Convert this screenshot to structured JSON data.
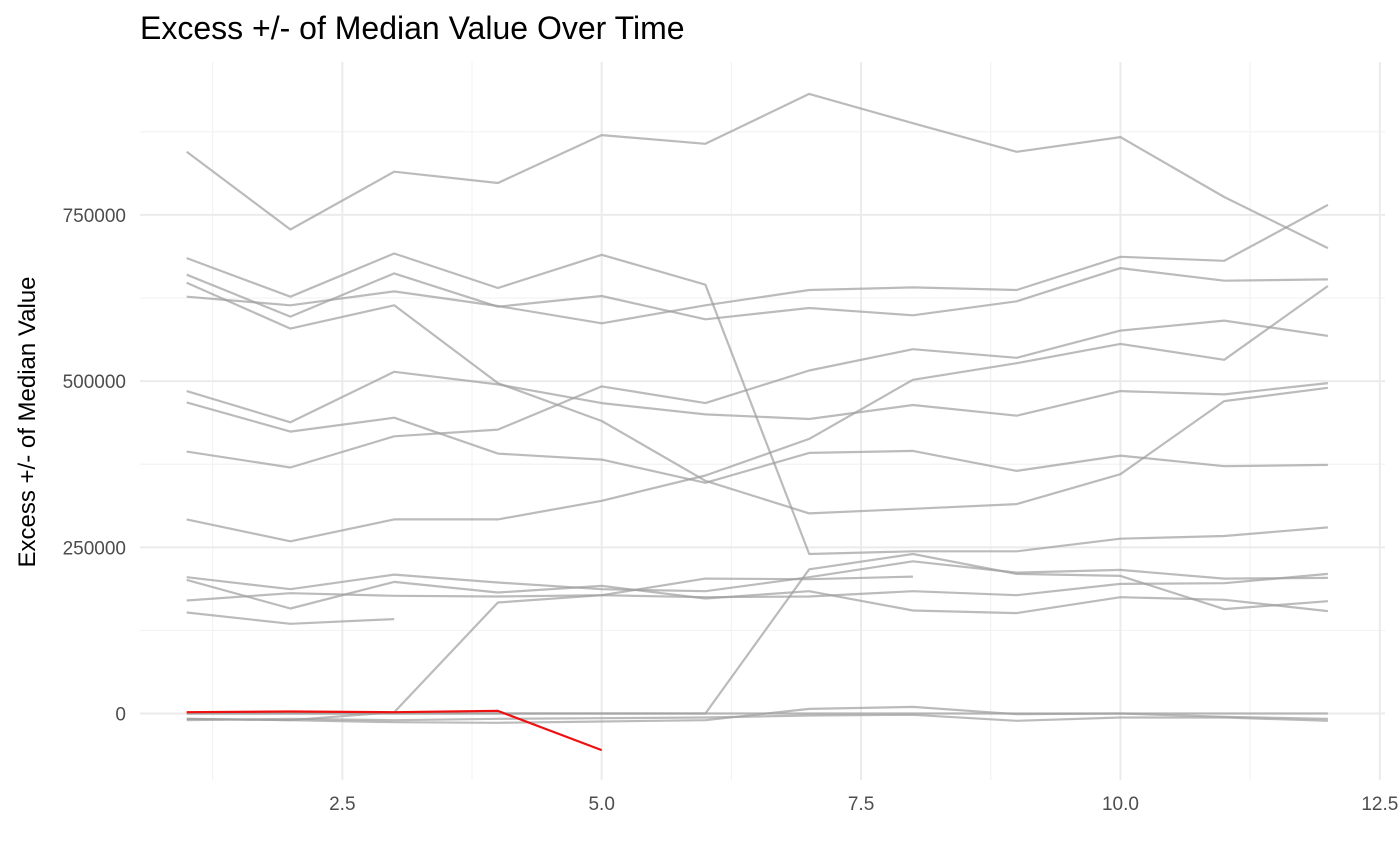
{
  "chart_data": {
    "type": "line",
    "title": "Excess +/- of Median Value Over Time",
    "xlabel": "",
    "ylabel": "Excess +/- of Median Value",
    "xlim": [
      0.55,
      12.55
    ],
    "ylim": [
      -100000,
      980000
    ],
    "x_ticks": [
      2.5,
      5.0,
      7.5,
      10.0,
      12.5
    ],
    "x_tick_labels": [
      "2.5",
      "5.0",
      "7.5",
      "10.0",
      "12.5"
    ],
    "y_ticks": [
      0,
      250000,
      500000,
      750000
    ],
    "y_tick_labels": [
      "0",
      "250000",
      "500000",
      "750000"
    ],
    "grid": true,
    "legend": "none",
    "colors": {
      "background": "#9e9e9e",
      "highlight": "#ee1111"
    },
    "series": [
      {
        "x": [
          1,
          2,
          3,
          4,
          5,
          6,
          7,
          8,
          9,
          10,
          11,
          12
        ],
        "values": [
          845000,
          728000,
          815000,
          798000,
          870000,
          857000,
          932000,
          888000,
          845000,
          867000,
          777000,
          700000
        ]
      },
      {
        "x": [
          1,
          2,
          3,
          4,
          5,
          6,
          7,
          8,
          9,
          10,
          11,
          12
        ],
        "values": [
          685000,
          627000,
          692000,
          640000,
          690000,
          645000,
          240000,
          244000,
          244000,
          263000,
          267000,
          280000
        ]
      },
      {
        "x": [
          1,
          2,
          3,
          4,
          5,
          6,
          7,
          8,
          9,
          10,
          11,
          12
        ],
        "values": [
          660000,
          597000,
          662000,
          612000,
          628000,
          593000,
          610000,
          599000,
          620000,
          670000,
          651000,
          653000
        ]
      },
      {
        "x": [
          1,
          2,
          3,
          4,
          5,
          6,
          7,
          8,
          9,
          10,
          11,
          12
        ],
        "values": [
          648000,
          579000,
          614000,
          497000,
          440000,
          350000,
          301000,
          308000,
          315000,
          360000,
          470000,
          490000
        ]
      },
      {
        "x": [
          1,
          2,
          3,
          4,
          5,
          6,
          7,
          8,
          9,
          10,
          11,
          12
        ],
        "values": [
          627000,
          614000,
          635000,
          613000,
          587000,
          614000,
          637000,
          641000,
          637000,
          687000,
          681000,
          765000
        ]
      },
      {
        "x": [
          1,
          2,
          3,
          4,
          5,
          6,
          7,
          8,
          9,
          10,
          11,
          12
        ],
        "values": [
          485000,
          438000,
          514000,
          495000,
          467000,
          450000,
          443000,
          464000,
          448000,
          485000,
          480000,
          497000
        ]
      },
      {
        "x": [
          1,
          2,
          3,
          4,
          5,
          6,
          7,
          8,
          9,
          10,
          11,
          12
        ],
        "values": [
          468000,
          424000,
          445000,
          391000,
          382000,
          347000,
          392000,
          395000,
          365000,
          388000,
          372000,
          374000
        ]
      },
      {
        "x": [
          1,
          2,
          3,
          4,
          5,
          6,
          7,
          8,
          9,
          10,
          11,
          12
        ],
        "values": [
          394000,
          370000,
          417000,
          427000,
          492000,
          467000,
          516000,
          548000,
          535000,
          576000,
          591000,
          568000
        ]
      },
      {
        "x": [
          1,
          2,
          3,
          4,
          5,
          6,
          7,
          8,
          9,
          10,
          11,
          12
        ],
        "values": [
          292000,
          259000,
          292000,
          292000,
          320000,
          358000,
          413000,
          502000,
          527000,
          556000,
          532000,
          643000
        ]
      },
      {
        "x": [
          1,
          2,
          3,
          4,
          5,
          6,
          7,
          8,
          9,
          10,
          11,
          12
        ],
        "values": [
          205000,
          187000,
          209000,
          197000,
          187000,
          184000,
          205000,
          229000,
          212000,
          216000,
          203000,
          204000
        ]
      },
      {
        "x": [
          1,
          2,
          3,
          4,
          5,
          6,
          7,
          8,
          9,
          10,
          11,
          12
        ],
        "values": [
          201000,
          158000,
          198000,
          182000,
          192000,
          173000,
          184000,
          155000,
          151000,
          175000,
          171000,
          154000
        ]
      },
      {
        "x": [
          1,
          2,
          3,
          4,
          5,
          6,
          7,
          8
        ],
        "values": [
          170000,
          181000,
          177000,
          176000,
          178000,
          203000,
          202000,
          206000
        ]
      },
      {
        "x": [
          1,
          2,
          3
        ],
        "values": [
          152000,
          135000,
          142000
        ]
      },
      {
        "x": [
          1,
          2,
          3,
          4,
          5,
          6,
          7,
          8,
          9,
          10,
          11,
          12
        ],
        "values": [
          -8000,
          -10000,
          2000,
          167000,
          178000,
          175000,
          176000,
          184000,
          178000,
          195000,
          196000,
          210000
        ]
      },
      {
        "x": [
          1,
          2,
          3,
          4,
          5,
          6,
          7,
          8,
          9,
          10,
          11,
          12
        ],
        "values": [
          0,
          0,
          0,
          0,
          0,
          0,
          217000,
          240000,
          210000,
          207000,
          157000,
          169000
        ]
      },
      {
        "x": [
          1,
          2,
          3,
          4,
          5,
          6,
          7,
          8,
          9,
          10,
          11,
          12
        ],
        "values": [
          -8000,
          -10000,
          -13000,
          -14000,
          -12000,
          -10000,
          7000,
          10000,
          -1000,
          0,
          -5000,
          -8000
        ]
      },
      {
        "x": [
          1,
          2,
          3,
          4,
          5,
          6,
          7,
          8,
          9,
          10,
          11,
          12
        ],
        "values": [
          -10000,
          -8000,
          -10000,
          -8000,
          -7000,
          -6000,
          -3000,
          -2000,
          -11000,
          -6000,
          -6000,
          -11000
        ]
      },
      {
        "x": [
          1,
          2,
          3,
          4,
          5,
          6,
          7,
          8,
          9,
          10,
          11,
          12
        ],
        "values": [
          0,
          0,
          0,
          0,
          0,
          0,
          0,
          0,
          0,
          0,
          0,
          0
        ]
      },
      {
        "x": [
          1,
          2,
          3,
          4,
          5
        ],
        "values": [
          2000,
          3000,
          2000,
          4000,
          -55000
        ],
        "highlight": true
      }
    ]
  }
}
